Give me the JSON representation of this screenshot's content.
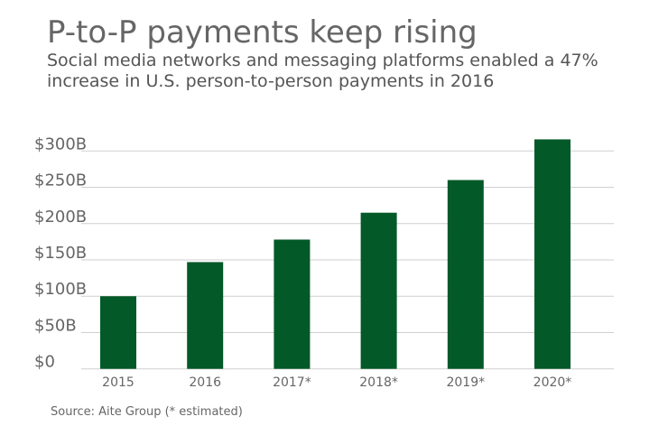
{
  "chart_data": {
    "type": "bar",
    "title": "P-to-P payments keep rising",
    "subtitle": "Social media networks and messaging platforms enabled a 47% increase in U.S. person-to-person payments in 2016",
    "categories": [
      "2015",
      "2016",
      "2017*",
      "2018*",
      "2019*",
      "2020*"
    ],
    "values": [
      100,
      147,
      178,
      215,
      260,
      316
    ],
    "unit": "billion USD",
    "yticks": [
      0,
      50,
      100,
      150,
      200,
      250,
      300
    ],
    "ytick_labels": [
      "$0",
      "$50B",
      "$100B",
      "$150B",
      "$200B",
      "$250B",
      "$300B"
    ],
    "ylim": [
      0,
      300
    ],
    "xlabel": "",
    "ylabel": "",
    "grid": true,
    "bar_color": "#035927",
    "source": "Source: Aite Group (* estimated)"
  }
}
